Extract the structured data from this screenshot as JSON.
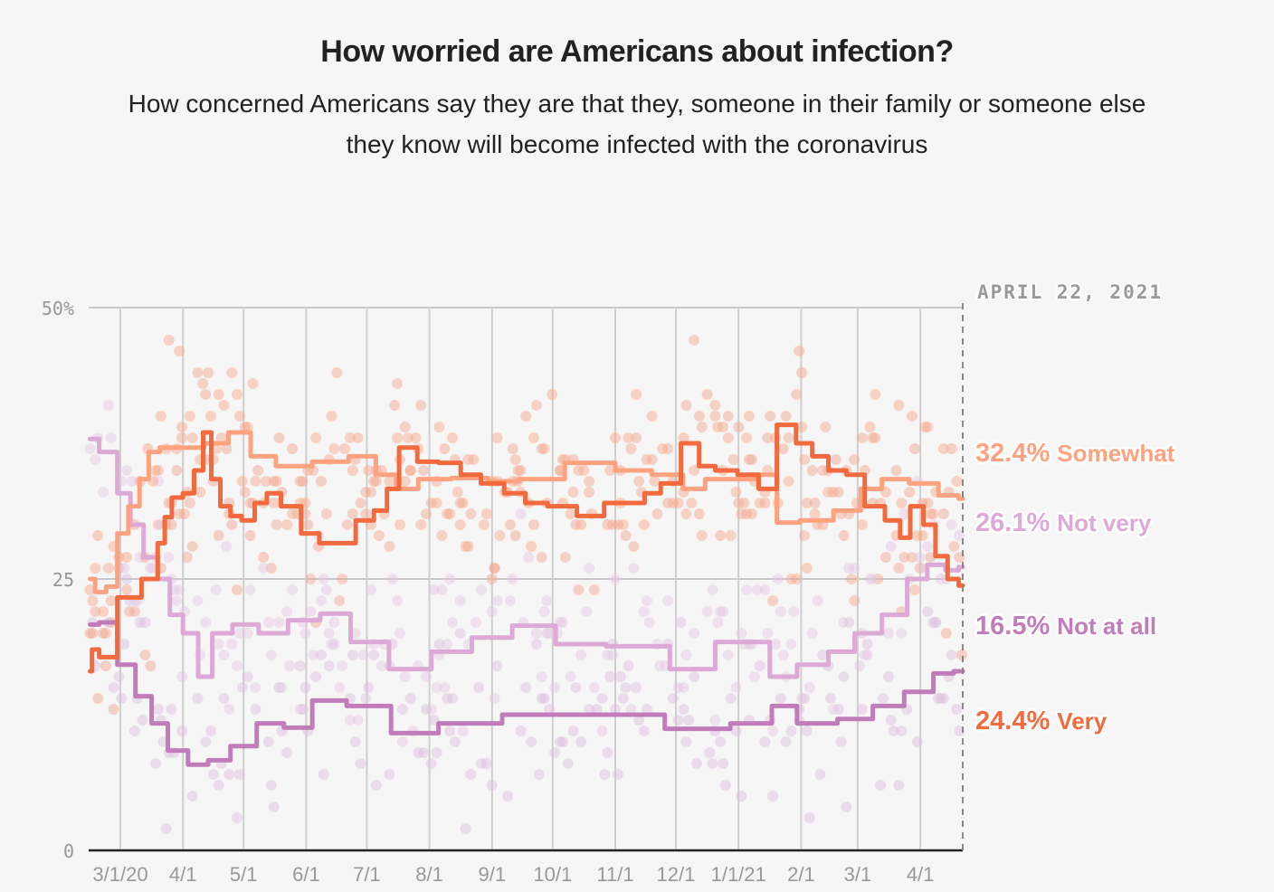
{
  "header": {
    "title": "How worried are Americans about infection?",
    "subtitle_line1": "How concerned Americans say they are that they, someone in their family or someone else",
    "subtitle_line2": "they know will become infected with the coronavirus"
  },
  "chart_data": {
    "type": "line",
    "title": "How worried are Americans about infection?",
    "subtitle": "How concerned Americans say they are that they, someone in their family or someone else they know will become infected with the coronavirus",
    "xlabel": "",
    "ylabel": "",
    "x_unit": "days since 3/1/20",
    "xlim": [
      -15,
      417
    ],
    "ylim": [
      0,
      50
    ],
    "y_ticks": [
      {
        "value": 0,
        "label": "0"
      },
      {
        "value": 25,
        "label": "25"
      },
      {
        "value": 50,
        "label": "50%"
      }
    ],
    "x_ticks": [
      {
        "day": 0,
        "label": "3/1/20"
      },
      {
        "day": 31,
        "label": "4/1"
      },
      {
        "day": 61,
        "label": "5/1"
      },
      {
        "day": 92,
        "label": "6/1"
      },
      {
        "day": 122,
        "label": "7/1"
      },
      {
        "day": 153,
        "label": "8/1"
      },
      {
        "day": 184,
        "label": "9/1"
      },
      {
        "day": 214,
        "label": "10/1"
      },
      {
        "day": 245,
        "label": "11/1"
      },
      {
        "day": 275,
        "label": "12/1"
      },
      {
        "day": 306,
        "label": "1/1/21"
      },
      {
        "day": 337,
        "label": "2/1"
      },
      {
        "day": 365,
        "label": "3/1"
      },
      {
        "day": 396,
        "label": "4/1"
      }
    ],
    "grid": true,
    "end_date_label": "APRIL 22, 2021",
    "end_day": 417,
    "series": [
      {
        "name": "Somewhat",
        "final_label": "32.4%",
        "color": "#FFA27F",
        "dot_color": "#F8A585",
        "label_rank": 1,
        "points": [
          [
            -15,
            25
          ],
          [
            -10,
            23.8
          ],
          [
            -4,
            24.3
          ],
          [
            1,
            29.2
          ],
          [
            7,
            31.7
          ],
          [
            12,
            34.2
          ],
          [
            16,
            36.7
          ],
          [
            23,
            37.1
          ],
          [
            35,
            37.1
          ],
          [
            48,
            37.5
          ],
          [
            59,
            38.5
          ],
          [
            70,
            36.3
          ],
          [
            84,
            35.4
          ],
          [
            106,
            35.8
          ],
          [
            120,
            36.3
          ],
          [
            133,
            34.6
          ],
          [
            140,
            33.3
          ],
          [
            155,
            34.2
          ],
          [
            173,
            34.3
          ],
          [
            191,
            34
          ],
          [
            204,
            34.2
          ],
          [
            236,
            35.7
          ],
          [
            254,
            35
          ],
          [
            272,
            34.6
          ],
          [
            285,
            33.3
          ],
          [
            294,
            34.2
          ],
          [
            312,
            34.2
          ],
          [
            320,
            34.6
          ],
          [
            330,
            30.2
          ],
          [
            343,
            30.4
          ],
          [
            363,
            31.3
          ],
          [
            370,
            33.3
          ],
          [
            384,
            34.2
          ],
          [
            397,
            33.8
          ],
          [
            413,
            32.7
          ],
          [
            417,
            32.4
          ]
        ]
      },
      {
        "name": "Not very",
        "final_label": "26.1%",
        "color": "#DDAAD7",
        "dot_color": "#E4C7E2",
        "label_rank": 2,
        "points": [
          [
            -15,
            37.9
          ],
          [
            -6,
            36.7
          ],
          [
            3,
            32.9
          ],
          [
            7,
            30
          ],
          [
            16,
            27
          ],
          [
            21,
            25
          ],
          [
            28,
            21.7
          ],
          [
            34,
            20
          ],
          [
            43,
            16
          ],
          [
            48,
            20
          ],
          [
            63,
            20.8
          ],
          [
            74,
            20
          ],
          [
            92,
            21.2
          ],
          [
            106,
            21.8
          ],
          [
            122,
            19.2
          ],
          [
            144,
            16.7
          ],
          [
            164,
            18.3
          ],
          [
            184,
            19.6
          ],
          [
            204,
            20.7
          ],
          [
            227,
            19
          ],
          [
            254,
            18.8
          ],
          [
            290,
            16.7
          ],
          [
            299,
            19.2
          ],
          [
            317,
            19.2
          ],
          [
            326,
            16
          ],
          [
            344,
            17.1
          ],
          [
            357,
            18.3
          ],
          [
            370,
            20
          ],
          [
            384,
            21.7
          ],
          [
            395,
            25
          ],
          [
            404,
            26.3
          ],
          [
            413,
            25.8
          ],
          [
            417,
            26.1
          ]
        ]
      },
      {
        "name": "Not at all",
        "final_label": "16.5%",
        "color": "#C17DBA",
        "dot_color": "#DCBCDD",
        "label_rank": 3,
        "points": [
          [
            -15,
            20.8
          ],
          [
            -6,
            21
          ],
          [
            3,
            17.1
          ],
          [
            12,
            14.2
          ],
          [
            19,
            11.7
          ],
          [
            28,
            9.2
          ],
          [
            39,
            7.9
          ],
          [
            48,
            8.3
          ],
          [
            61,
            9.6
          ],
          [
            74,
            11.7
          ],
          [
            88,
            11.3
          ],
          [
            102,
            13.8
          ],
          [
            122,
            13.3
          ],
          [
            146,
            10.8
          ],
          [
            169,
            11.7
          ],
          [
            209,
            12.5
          ],
          [
            254,
            12.5
          ],
          [
            285,
            11.2
          ],
          [
            319,
            11.7
          ],
          [
            326,
            13.3
          ],
          [
            344,
            11.7
          ],
          [
            366,
            12.1
          ],
          [
            379,
            13.3
          ],
          [
            397,
            14.6
          ],
          [
            408,
            16.3
          ],
          [
            417,
            16.5
          ]
        ]
      },
      {
        "name": "Very",
        "final_label": "24.4%",
        "color": "#F26A3D",
        "dot_color": "#F2A58C",
        "label_rank": 4,
        "points": [
          [
            -15,
            16.5
          ],
          [
            -13,
            18.5
          ],
          [
            -8,
            17.8
          ],
          [
            5,
            23.3
          ],
          [
            16,
            25
          ],
          [
            21,
            28.3
          ],
          [
            23,
            30.7
          ],
          [
            28,
            32.5
          ],
          [
            34,
            32.9
          ],
          [
            39,
            35
          ],
          [
            43,
            38.5
          ],
          [
            47,
            34.2
          ],
          [
            52,
            31.7
          ],
          [
            57,
            30.8
          ],
          [
            63,
            30.4
          ],
          [
            70,
            32
          ],
          [
            75,
            32.9
          ],
          [
            84,
            31.7
          ],
          [
            95,
            29.2
          ],
          [
            102,
            28.3
          ],
          [
            113,
            28.3
          ],
          [
            120,
            30.4
          ],
          [
            131,
            31.3
          ],
          [
            133,
            33.3
          ],
          [
            143,
            37.1
          ],
          [
            151,
            35.8
          ],
          [
            164,
            35.7
          ],
          [
            173,
            34.6
          ],
          [
            184,
            33.8
          ],
          [
            196,
            32.9
          ],
          [
            205,
            32
          ],
          [
            218,
            31.7
          ],
          [
            234,
            30.8
          ],
          [
            245,
            32
          ],
          [
            256,
            32
          ],
          [
            263,
            32.9
          ],
          [
            272,
            33.8
          ],
          [
            283,
            37.5
          ],
          [
            290,
            35.4
          ],
          [
            299,
            35
          ],
          [
            312,
            34.6
          ],
          [
            320,
            33.3
          ],
          [
            330,
            39.2
          ],
          [
            339,
            37.5
          ],
          [
            346,
            36.3
          ],
          [
            355,
            35
          ],
          [
            364,
            34.6
          ],
          [
            373,
            31.7
          ],
          [
            384,
            30.4
          ],
          [
            388,
            28.8
          ],
          [
            394,
            31.7
          ],
          [
            401,
            30
          ],
          [
            406,
            27.1
          ],
          [
            413,
            25
          ],
          [
            417,
            24.4
          ]
        ]
      }
    ]
  }
}
